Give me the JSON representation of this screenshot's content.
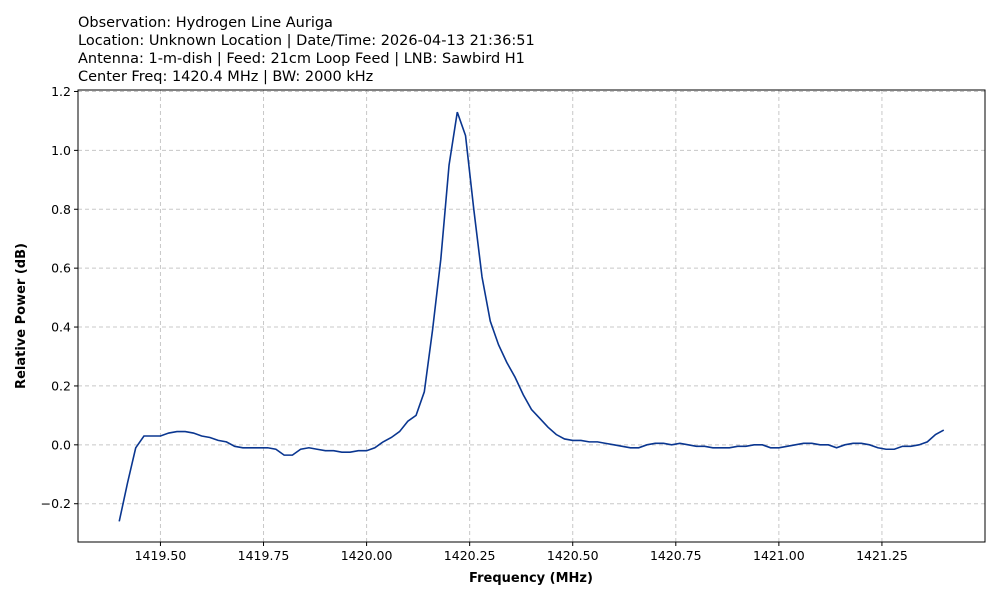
{
  "chart_data": {
    "type": "line",
    "title": [
      "Observation: Hydrogen Line Auriga",
      "Location: Unknown Location  |  Date/Time: 2026-04-13 21:36:51",
      "Antenna: 1-m-dish  |  Feed: 21cm Loop Feed  |  LNB: Sawbird H1",
      "Center Freq: 1420.4 MHz  |  BW: 2000 kHz"
    ],
    "xlabel": "Frequency (MHz)",
    "ylabel": "Relative Power (dB)",
    "xlim": [
      1419.3,
      1421.5
    ],
    "ylim": [
      -0.33,
      1.205
    ],
    "xticks": [
      {
        "value": 1419.5,
        "label": "1419.50"
      },
      {
        "value": 1419.75,
        "label": "1419.75"
      },
      {
        "value": 1420,
        "label": "1420.00"
      },
      {
        "value": 1420.25,
        "label": "1420.25"
      },
      {
        "value": 1420.5,
        "label": "1420.50"
      },
      {
        "value": 1420.75,
        "label": "1420.75"
      },
      {
        "value": 1421,
        "label": "1421.00"
      },
      {
        "value": 1421.25,
        "label": "1421.25"
      }
    ],
    "yticks": [
      {
        "value": -0.2,
        "label": "−0.2"
      },
      {
        "value": 0,
        "label": "0.0"
      },
      0.2,
      0.4,
      0.6,
      0.8,
      {
        "value": 1,
        "label": "1.0"
      },
      1.2
    ],
    "grid": true,
    "x": [
      1419.4,
      1419.42,
      1419.44,
      1419.46,
      1419.48,
      1419.5,
      1419.52,
      1419.54,
      1419.56,
      1419.58,
      1419.6,
      1419.62,
      1419.64,
      1419.66,
      1419.68,
      1419.7,
      1419.72,
      1419.74,
      1419.76,
      1419.78,
      1419.8,
      1419.82,
      1419.84,
      1419.86,
      1419.88,
      1419.9,
      1419.92,
      1419.94,
      1419.96,
      1419.98,
      1420.0,
      1420.02,
      1420.04,
      1420.06,
      1420.08,
      1420.1,
      1420.12,
      1420.14,
      1420.16,
      1420.18,
      1420.2,
      1420.22,
      1420.24,
      1420.26,
      1420.28,
      1420.3,
      1420.32,
      1420.34,
      1420.36,
      1420.38,
      1420.4,
      1420.42,
      1420.44,
      1420.46,
      1420.48,
      1420.5,
      1420.52,
      1420.54,
      1420.56,
      1420.58,
      1420.6,
      1420.62,
      1420.64,
      1420.66,
      1420.68,
      1420.7,
      1420.72,
      1420.74,
      1420.76,
      1420.78,
      1420.8,
      1420.82,
      1420.84,
      1420.86,
      1420.88,
      1420.9,
      1420.92,
      1420.94,
      1420.96,
      1420.98,
      1421.0,
      1421.02,
      1421.04,
      1421.06,
      1421.08,
      1421.1,
      1421.12,
      1421.14,
      1421.16,
      1421.18,
      1421.2,
      1421.22,
      1421.24,
      1421.26,
      1421.28,
      1421.3,
      1421.32,
      1421.34,
      1421.36,
      1421.38,
      1421.4
    ],
    "series": [
      {
        "color": "#0a3690",
        "values": [
          -0.26,
          -0.13,
          -0.01,
          0.03,
          0.03,
          0.03,
          0.04,
          0.045,
          0.045,
          0.04,
          0.03,
          0.025,
          0.015,
          0.01,
          -0.005,
          -0.01,
          -0.01,
          -0.01,
          -0.01,
          -0.015,
          -0.035,
          -0.035,
          -0.015,
          -0.01,
          -0.015,
          -0.02,
          -0.02,
          -0.025,
          -0.025,
          -0.02,
          -0.02,
          -0.01,
          0.01,
          0.025,
          0.045,
          0.08,
          0.1,
          0.18,
          0.39,
          0.63,
          0.95,
          1.13,
          1.05,
          0.8,
          0.57,
          0.42,
          0.34,
          0.28,
          0.23,
          0.17,
          0.12,
          0.09,
          0.06,
          0.035,
          0.02,
          0.015,
          0.015,
          0.01,
          0.01,
          0.005,
          0.0,
          -0.005,
          -0.01,
          -0.01,
          0.0,
          0.005,
          0.005,
          0.0,
          0.005,
          0.0,
          -0.005,
          -0.005,
          -0.01,
          -0.01,
          -0.01,
          -0.005,
          -0.005,
          0.0,
          0.0,
          -0.01,
          -0.01,
          -0.005,
          0.0,
          0.005,
          0.005,
          0.0,
          0.0,
          -0.01,
          0.0,
          0.005,
          0.005,
          0.0,
          -0.01,
          -0.015,
          -0.015,
          -0.005,
          -0.005,
          0.0,
          0.01,
          0.035,
          0.05
        ]
      }
    ]
  }
}
